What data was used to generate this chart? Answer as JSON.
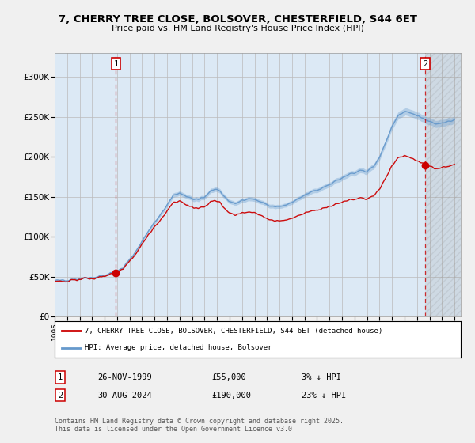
{
  "title_line1": "7, CHERRY TREE CLOSE, BOLSOVER, CHESTERFIELD, S44 6ET",
  "title_line2": "Price paid vs. HM Land Registry's House Price Index (HPI)",
  "ylim": [
    0,
    330000
  ],
  "xlim_start": 1995.0,
  "xlim_end": 2027.5,
  "yticks": [
    0,
    50000,
    100000,
    150000,
    200000,
    250000,
    300000
  ],
  "ytick_labels": [
    "£0",
    "£50K",
    "£100K",
    "£150K",
    "£200K",
    "£250K",
    "£300K"
  ],
  "transaction1_date": 1999.9,
  "transaction1_price": 55000,
  "transaction1_label": "1",
  "transaction2_date": 2024.66,
  "transaction2_price": 190000,
  "transaction2_label": "2",
  "line_color_property": "#cc0000",
  "line_color_hpi": "#6699cc",
  "legend_label_property": "7, CHERRY TREE CLOSE, BOLSOVER, CHESTERFIELD, S44 6ET (detached house)",
  "legend_label_hpi": "HPI: Average price, detached house, Bolsover",
  "table_row1": [
    "1",
    "26-NOV-1999",
    "£55,000",
    "3% ↓ HPI"
  ],
  "table_row2": [
    "2",
    "30-AUG-2024",
    "£190,000",
    "23% ↓ HPI"
  ],
  "footnote": "Contains HM Land Registry data © Crown copyright and database right 2025.\nThis data is licensed under the Open Government Licence v3.0.",
  "background_color": "#f0f0f0",
  "plot_bg_color": "#dce9f5",
  "grid_color": "#bbbbbb"
}
